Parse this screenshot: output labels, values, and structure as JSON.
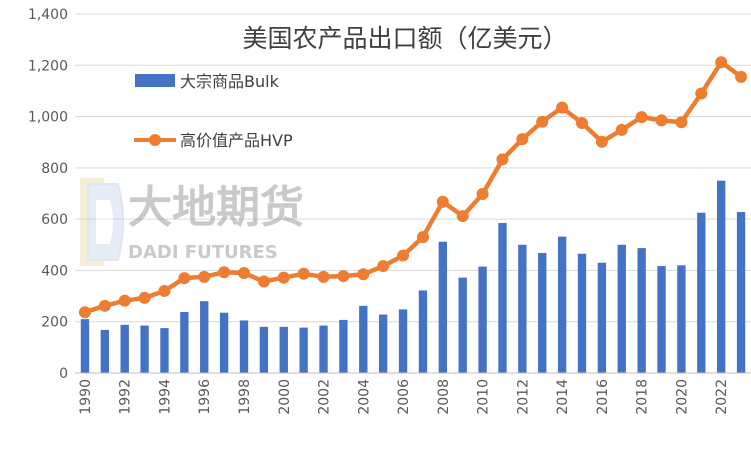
{
  "chart_data": {
    "type": "bar",
    "title": "美国农产品出口额（亿美元）",
    "x": [
      1990,
      1991,
      1992,
      1993,
      1994,
      1995,
      1996,
      1997,
      1998,
      1999,
      2000,
      2001,
      2002,
      2003,
      2004,
      2005,
      2006,
      2007,
      2008,
      2009,
      2010,
      2011,
      2012,
      2013,
      2014,
      2015,
      2016,
      2017,
      2018,
      2019,
      2020,
      2021,
      2022,
      2023
    ],
    "x_tick_labels": [
      "1990",
      "1992",
      "1994",
      "1996",
      "1998",
      "2000",
      "2002",
      "2004",
      "2006",
      "2008",
      "2010",
      "2012",
      "2014",
      "2016",
      "2018",
      "2020",
      "2022"
    ],
    "y_tick_labels": [
      "0",
      "200",
      "400",
      "600",
      "800",
      "1,000",
      "1,200",
      "1,400"
    ],
    "ylim": [
      0,
      1400
    ],
    "grid": true,
    "legend_position": "top-left",
    "series": [
      {
        "name": "大宗商品Bulk",
        "type": "bar",
        "color": "#4472C4",
        "values": [
          210,
          168,
          188,
          185,
          175,
          238,
          280,
          235,
          205,
          180,
          180,
          177,
          185,
          207,
          262,
          228,
          248,
          322,
          512,
          372,
          415,
          585,
          500,
          468,
          532,
          465,
          430,
          500,
          487,
          417,
          420,
          625,
          750,
          628
        ]
      },
      {
        "name": "高价值产品HVP",
        "type": "line",
        "color": "#ED7D31",
        "values": [
          237,
          262,
          282,
          293,
          320,
          370,
          375,
          393,
          390,
          357,
          372,
          387,
          375,
          378,
          385,
          417,
          458,
          530,
          668,
          612,
          698,
          833,
          912,
          980,
          1035,
          975,
          902,
          948,
          998,
          985,
          978,
          1090,
          1212,
          1155
        ]
      }
    ],
    "watermark": {
      "line1": "大地期货",
      "line2": "DADI FUTURES"
    }
  }
}
